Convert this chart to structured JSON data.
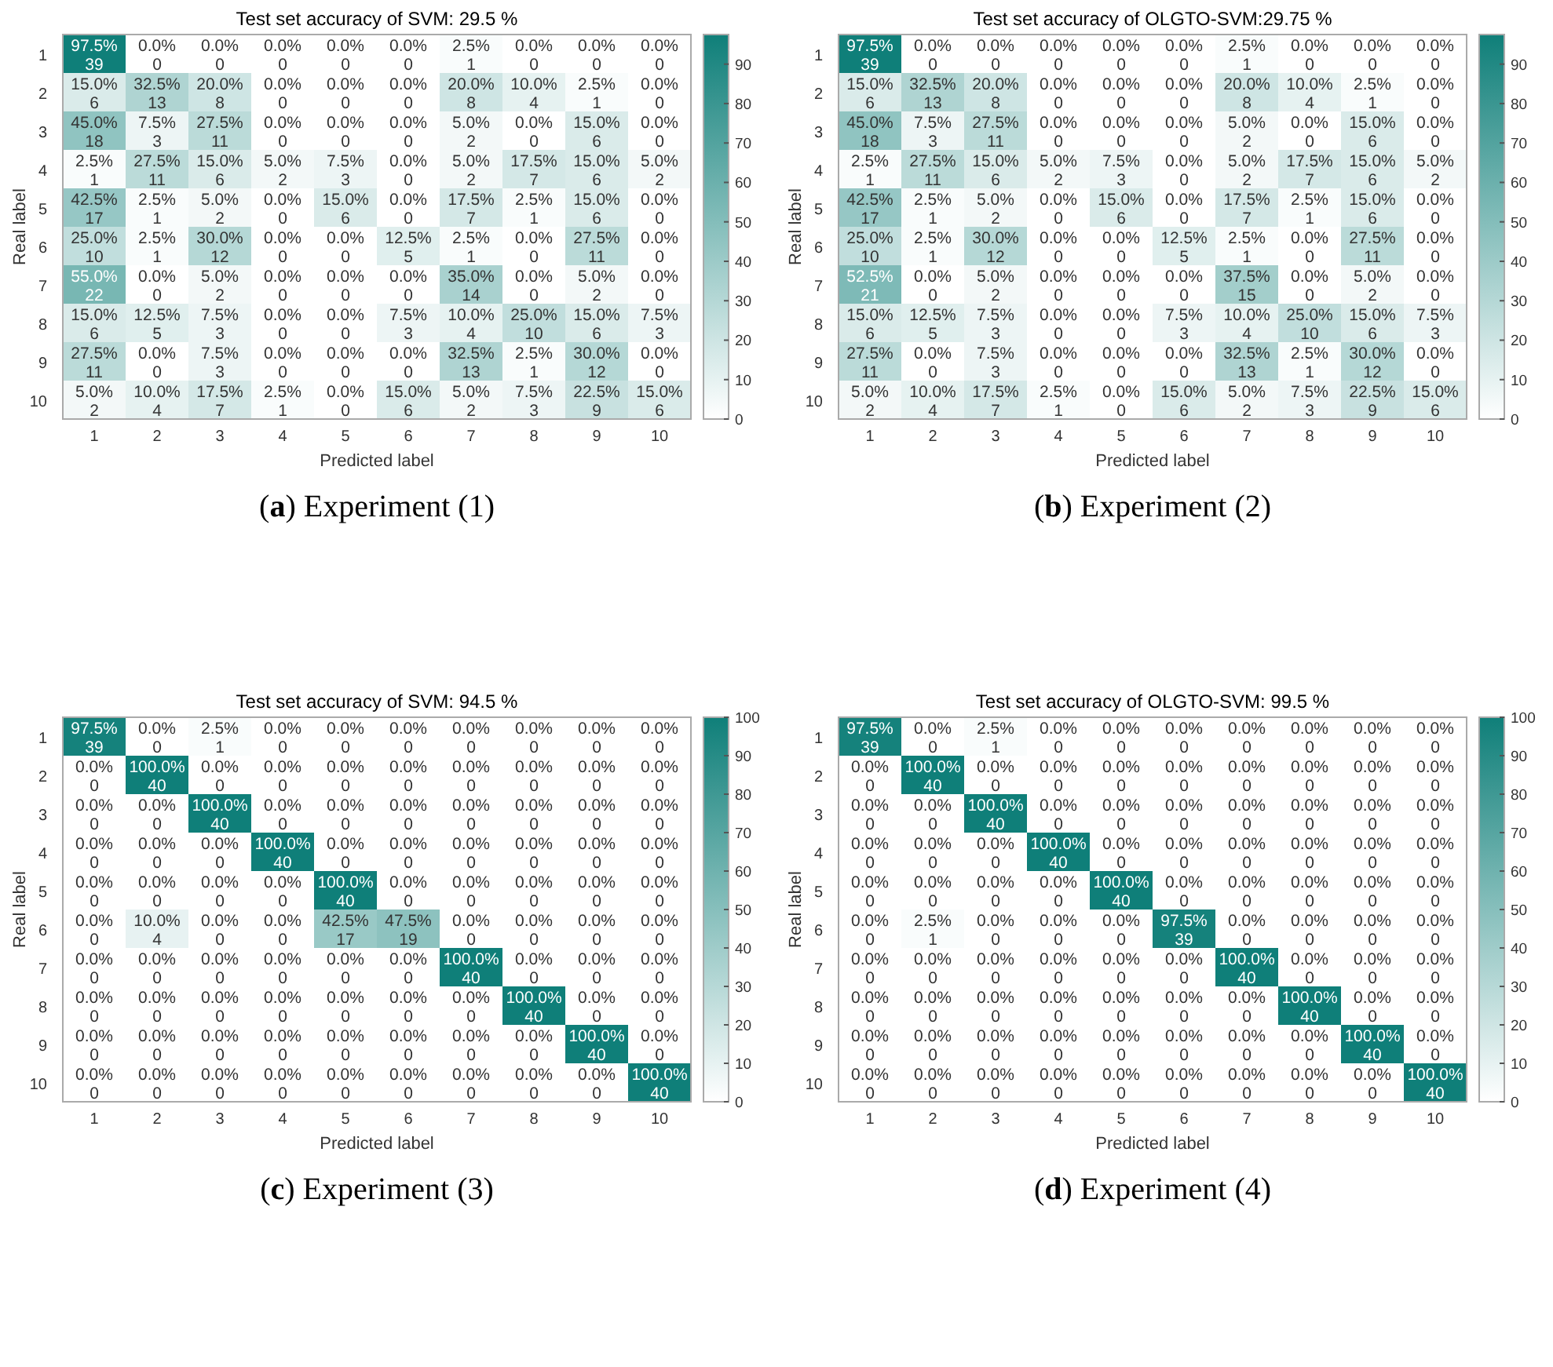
{
  "chart_data": [
    {
      "type": "heatmap",
      "title": "Test set accuracy of SVM: 29.5 %",
      "xlabel": "Predicted label",
      "ylabel": "Real label",
      "annotations": [
        "(a) Experiment (1)"
      ],
      "categories": [
        "1",
        "2",
        "3",
        "4",
        "5",
        "6",
        "7",
        "8",
        "9",
        "10"
      ],
      "y_categories": [
        "1",
        "2",
        "3",
        "4",
        "5",
        "6",
        "7",
        "8",
        "9",
        "10"
      ],
      "clim": [
        0,
        97.5
      ],
      "cticks": [
        0,
        10,
        20,
        30,
        40,
        50,
        60,
        70,
        80,
        90
      ],
      "cells": [
        [
          97.5,
          0,
          0,
          0,
          0,
          0,
          2.5,
          0,
          0,
          0
        ],
        [
          15,
          32.5,
          20,
          0,
          0,
          0,
          20,
          10,
          2.5,
          0
        ],
        [
          45,
          7.5,
          27.5,
          0,
          0,
          0,
          5,
          0,
          15,
          0
        ],
        [
          2.5,
          27.5,
          15,
          5,
          7.5,
          0,
          5,
          17.5,
          15,
          5
        ],
        [
          42.5,
          2.5,
          5,
          0,
          15,
          0,
          17.5,
          2.5,
          15,
          0
        ],
        [
          25,
          2.5,
          30,
          0,
          0,
          12.5,
          2.5,
          0,
          27.5,
          0
        ],
        [
          55,
          0,
          5,
          0,
          0,
          0,
          35,
          0,
          5,
          0
        ],
        [
          15,
          12.5,
          7.5,
          0,
          0,
          7.5,
          10,
          25,
          15,
          7.5
        ],
        [
          27.5,
          0,
          7.5,
          0,
          0,
          0,
          32.5,
          2.5,
          30,
          0
        ],
        [
          5,
          10,
          17.5,
          2.5,
          0,
          15,
          5,
          7.5,
          22.5,
          15
        ]
      ],
      "cell_labels": [
        [
          "97.5%\n39",
          "0.0%\n0",
          "0.0%\n0",
          "0.0%\n0",
          "0.0%\n0",
          "0.0%\n0",
          "2.5%\n1",
          "0.0%\n0",
          "0.0%\n0",
          "0.0%\n0"
        ],
        [
          "15.0%\n6",
          "32.5%\n13",
          "20.0%\n8",
          "0.0%\n0",
          "0.0%\n0",
          "0.0%\n0",
          "20.0%\n8",
          "10.0%\n4",
          "2.5%\n1",
          "0.0%\n0"
        ],
        [
          "45.0%\n18",
          "7.5%\n3",
          "27.5%\n11",
          "0.0%\n0",
          "0.0%\n0",
          "0.0%\n0",
          "5.0%\n2",
          "0.0%\n0",
          "15.0%\n6",
          "0.0%\n0"
        ],
        [
          "2.5%\n1",
          "27.5%\n11",
          "15.0%\n6",
          "5.0%\n2",
          "7.5%\n3",
          "0.0%\n0",
          "5.0%\n2",
          "17.5%\n7",
          "15.0%\n6",
          "5.0%\n2"
        ],
        [
          "42.5%\n17",
          "2.5%\n1",
          "5.0%\n2",
          "0.0%\n0",
          "15.0%\n6",
          "0.0%\n0",
          "17.5%\n7",
          "2.5%\n1",
          "15.0%\n6",
          "0.0%\n0"
        ],
        [
          "25.0%\n10",
          "2.5%\n1",
          "30.0%\n12",
          "0.0%\n0",
          "0.0%\n0",
          "12.5%\n5",
          "2.5%\n1",
          "0.0%\n0",
          "27.5%\n11",
          "0.0%\n0"
        ],
        [
          "55.0%\n22",
          "0.0%\n0",
          "5.0%\n2",
          "0.0%\n0",
          "0.0%\n0",
          "0.0%\n0",
          "35.0%\n14",
          "0.0%\n0",
          "5.0%\n2",
          "0.0%\n0"
        ],
        [
          "15.0%\n6",
          "12.5%\n5",
          "7.5%\n3",
          "0.0%\n0",
          "0.0%\n0",
          "7.5%\n3",
          "10.0%\n4",
          "25.0%\n10",
          "15.0%\n6",
          "7.5%\n3"
        ],
        [
          "27.5%\n11",
          "0.0%\n0",
          "7.5%\n3",
          "0.0%\n0",
          "0.0%\n0",
          "0.0%\n0",
          "32.5%\n13",
          "2.5%\n1",
          "30.0%\n12",
          "0.0%\n0"
        ],
        [
          "5.0%\n2",
          "10.0%\n4",
          "17.5%\n7",
          "2.5%\n1",
          "0.0%\n0",
          "15.0%\n6",
          "5.0%\n2",
          "7.5%\n3",
          "22.5%\n9",
          "15.0%\n6"
        ]
      ]
    },
    {
      "type": "heatmap",
      "title": "Test set accuracy of OLGTO-SVM:29.75 %",
      "xlabel": "Predicted label",
      "ylabel": "Real label",
      "annotations": [
        "(b) Experiment (2)"
      ],
      "categories": [
        "1",
        "2",
        "3",
        "4",
        "5",
        "6",
        "7",
        "8",
        "9",
        "10"
      ],
      "y_categories": [
        "1",
        "2",
        "3",
        "4",
        "5",
        "6",
        "7",
        "8",
        "9",
        "10"
      ],
      "clim": [
        0,
        97.5
      ],
      "cticks": [
        0,
        10,
        20,
        30,
        40,
        50,
        60,
        70,
        80,
        90
      ],
      "cells": [
        [
          97.5,
          0,
          0,
          0,
          0,
          0,
          2.5,
          0,
          0,
          0
        ],
        [
          15,
          32.5,
          20,
          0,
          0,
          0,
          20,
          10,
          2.5,
          0
        ],
        [
          45,
          7.5,
          27.5,
          0,
          0,
          0,
          5,
          0,
          15,
          0
        ],
        [
          2.5,
          27.5,
          15,
          5,
          7.5,
          0,
          5,
          17.5,
          15,
          5
        ],
        [
          42.5,
          2.5,
          5,
          0,
          15,
          0,
          17.5,
          2.5,
          15,
          0
        ],
        [
          25,
          2.5,
          30,
          0,
          0,
          12.5,
          2.5,
          0,
          27.5,
          0
        ],
        [
          52.5,
          0,
          5,
          0,
          0,
          0,
          37.5,
          0,
          5,
          0
        ],
        [
          15,
          12.5,
          7.5,
          0,
          0,
          7.5,
          10,
          25,
          15,
          7.5
        ],
        [
          27.5,
          0,
          7.5,
          0,
          0,
          0,
          32.5,
          2.5,
          30,
          0
        ],
        [
          5,
          10,
          17.5,
          2.5,
          0,
          15,
          5,
          7.5,
          22.5,
          15
        ]
      ],
      "cell_labels": [
        [
          "97.5%\n39",
          "0.0%\n0",
          "0.0%\n0",
          "0.0%\n0",
          "0.0%\n0",
          "0.0%\n0",
          "2.5%\n1",
          "0.0%\n0",
          "0.0%\n0",
          "0.0%\n0"
        ],
        [
          "15.0%\n6",
          "32.5%\n13",
          "20.0%\n8",
          "0.0%\n0",
          "0.0%\n0",
          "0.0%\n0",
          "20.0%\n8",
          "10.0%\n4",
          "2.5%\n1",
          "0.0%\n0"
        ],
        [
          "45.0%\n18",
          "7.5%\n3",
          "27.5%\n11",
          "0.0%\n0",
          "0.0%\n0",
          "0.0%\n0",
          "5.0%\n2",
          "0.0%\n0",
          "15.0%\n6",
          "0.0%\n0"
        ],
        [
          "2.5%\n1",
          "27.5%\n11",
          "15.0%\n6",
          "5.0%\n2",
          "7.5%\n3",
          "0.0%\n0",
          "5.0%\n2",
          "17.5%\n7",
          "15.0%\n6",
          "5.0%\n2"
        ],
        [
          "42.5%\n17",
          "2.5%\n1",
          "5.0%\n2",
          "0.0%\n0",
          "15.0%\n6",
          "0.0%\n0",
          "17.5%\n7",
          "2.5%\n1",
          "15.0%\n6",
          "0.0%\n0"
        ],
        [
          "25.0%\n10",
          "2.5%\n1",
          "30.0%\n12",
          "0.0%\n0",
          "0.0%\n0",
          "12.5%\n5",
          "2.5%\n1",
          "0.0%\n0",
          "27.5%\n11",
          "0.0%\n0"
        ],
        [
          "52.5%\n21",
          "0.0%\n0",
          "5.0%\n2",
          "0.0%\n0",
          "0.0%\n0",
          "0.0%\n0",
          "37.5%\n15",
          "0.0%\n0",
          "5.0%\n2",
          "0.0%\n0"
        ],
        [
          "15.0%\n6",
          "12.5%\n5",
          "7.5%\n3",
          "0.0%\n0",
          "0.0%\n0",
          "7.5%\n3",
          "10.0%\n4",
          "25.0%\n10",
          "15.0%\n6",
          "7.5%\n3"
        ],
        [
          "27.5%\n11",
          "0.0%\n0",
          "7.5%\n3",
          "0.0%\n0",
          "0.0%\n0",
          "0.0%\n0",
          "32.5%\n13",
          "2.5%\n1",
          "30.0%\n12",
          "0.0%\n0"
        ],
        [
          "5.0%\n2",
          "10.0%\n4",
          "17.5%\n7",
          "2.5%\n1",
          "0.0%\n0",
          "15.0%\n6",
          "5.0%\n2",
          "7.5%\n3",
          "22.5%\n9",
          "15.0%\n6"
        ]
      ]
    },
    {
      "type": "heatmap",
      "title": "Test set accuracy of SVM: 94.5 %",
      "xlabel": "Predicted label",
      "ylabel": "Real label",
      "annotations": [
        "(c) Experiment (3)"
      ],
      "categories": [
        "1",
        "2",
        "3",
        "4",
        "5",
        "6",
        "7",
        "8",
        "9",
        "10"
      ],
      "y_categories": [
        "1",
        "2",
        "3",
        "4",
        "5",
        "6",
        "7",
        "8",
        "9",
        "10"
      ],
      "clim": [
        0,
        100
      ],
      "cticks": [
        0,
        10,
        20,
        30,
        40,
        50,
        60,
        70,
        80,
        90,
        100
      ],
      "cells": [
        [
          97.5,
          0,
          2.5,
          0,
          0,
          0,
          0,
          0,
          0,
          0
        ],
        [
          0,
          100,
          0,
          0,
          0,
          0,
          0,
          0,
          0,
          0
        ],
        [
          0,
          0,
          100,
          0,
          0,
          0,
          0,
          0,
          0,
          0
        ],
        [
          0,
          0,
          0,
          100,
          0,
          0,
          0,
          0,
          0,
          0
        ],
        [
          0,
          0,
          0,
          0,
          100,
          0,
          0,
          0,
          0,
          0
        ],
        [
          0,
          10,
          0,
          0,
          42.5,
          47.5,
          0,
          0,
          0,
          0
        ],
        [
          0,
          0,
          0,
          0,
          0,
          0,
          100,
          0,
          0,
          0
        ],
        [
          0,
          0,
          0,
          0,
          0,
          0,
          0,
          100,
          0,
          0
        ],
        [
          0,
          0,
          0,
          0,
          0,
          0,
          0,
          0,
          100,
          0
        ],
        [
          0,
          0,
          0,
          0,
          0,
          0,
          0,
          0,
          0,
          100
        ]
      ],
      "cell_labels": [
        [
          "97.5%\n39",
          "0.0%\n0",
          "2.5%\n1",
          "0.0%\n0",
          "0.0%\n0",
          "0.0%\n0",
          "0.0%\n0",
          "0.0%\n0",
          "0.0%\n0",
          "0.0%\n0"
        ],
        [
          "0.0%\n0",
          "100.0%\n40",
          "0.0%\n0",
          "0.0%\n0",
          "0.0%\n0",
          "0.0%\n0",
          "0.0%\n0",
          "0.0%\n0",
          "0.0%\n0",
          "0.0%\n0"
        ],
        [
          "0.0%\n0",
          "0.0%\n0",
          "100.0%\n40",
          "0.0%\n0",
          "0.0%\n0",
          "0.0%\n0",
          "0.0%\n0",
          "0.0%\n0",
          "0.0%\n0",
          "0.0%\n0"
        ],
        [
          "0.0%\n0",
          "0.0%\n0",
          "0.0%\n0",
          "100.0%\n40",
          "0.0%\n0",
          "0.0%\n0",
          "0.0%\n0",
          "0.0%\n0",
          "0.0%\n0",
          "0.0%\n0"
        ],
        [
          "0.0%\n0",
          "0.0%\n0",
          "0.0%\n0",
          "0.0%\n0",
          "100.0%\n40",
          "0.0%\n0",
          "0.0%\n0",
          "0.0%\n0",
          "0.0%\n0",
          "0.0%\n0"
        ],
        [
          "0.0%\n0",
          "10.0%\n4",
          "0.0%\n0",
          "0.0%\n0",
          "42.5%\n17",
          "47.5%\n19",
          "0.0%\n0",
          "0.0%\n0",
          "0.0%\n0",
          "0.0%\n0"
        ],
        [
          "0.0%\n0",
          "0.0%\n0",
          "0.0%\n0",
          "0.0%\n0",
          "0.0%\n0",
          "0.0%\n0",
          "100.0%\n40",
          "0.0%\n0",
          "0.0%\n0",
          "0.0%\n0"
        ],
        [
          "0.0%\n0",
          "0.0%\n0",
          "0.0%\n0",
          "0.0%\n0",
          "0.0%\n0",
          "0.0%\n0",
          "0.0%\n0",
          "100.0%\n40",
          "0.0%\n0",
          "0.0%\n0"
        ],
        [
          "0.0%\n0",
          "0.0%\n0",
          "0.0%\n0",
          "0.0%\n0",
          "0.0%\n0",
          "0.0%\n0",
          "0.0%\n0",
          "0.0%\n0",
          "100.0%\n40",
          "0.0%\n0"
        ],
        [
          "0.0%\n0",
          "0.0%\n0",
          "0.0%\n0",
          "0.0%\n0",
          "0.0%\n0",
          "0.0%\n0",
          "0.0%\n0",
          "0.0%\n0",
          "0.0%\n0",
          "100.0%\n40"
        ]
      ]
    },
    {
      "type": "heatmap",
      "title": "Test set accuracy of OLGTO-SVM: 99.5 %",
      "xlabel": "Predicted label",
      "ylabel": "Real label",
      "annotations": [
        "(d) Experiment (4)"
      ],
      "categories": [
        "1",
        "2",
        "3",
        "4",
        "5",
        "6",
        "7",
        "8",
        "9",
        "10"
      ],
      "y_categories": [
        "1",
        "2",
        "3",
        "4",
        "5",
        "6",
        "7",
        "8",
        "9",
        "10"
      ],
      "clim": [
        0,
        100
      ],
      "cticks": [
        0,
        10,
        20,
        30,
        40,
        50,
        60,
        70,
        80,
        90,
        100
      ],
      "cells": [
        [
          97.5,
          0,
          2.5,
          0,
          0,
          0,
          0,
          0,
          0,
          0
        ],
        [
          0,
          100,
          0,
          0,
          0,
          0,
          0,
          0,
          0,
          0
        ],
        [
          0,
          0,
          100,
          0,
          0,
          0,
          0,
          0,
          0,
          0
        ],
        [
          0,
          0,
          0,
          100,
          0,
          0,
          0,
          0,
          0,
          0
        ],
        [
          0,
          0,
          0,
          0,
          100,
          0,
          0,
          0,
          0,
          0
        ],
        [
          0,
          2.5,
          0,
          0,
          0,
          97.5,
          0,
          0,
          0,
          0
        ],
        [
          0,
          0,
          0,
          0,
          0,
          0,
          100,
          0,
          0,
          0
        ],
        [
          0,
          0,
          0,
          0,
          0,
          0,
          0,
          100,
          0,
          0
        ],
        [
          0,
          0,
          0,
          0,
          0,
          0,
          0,
          0,
          100,
          0
        ],
        [
          0,
          0,
          0,
          0,
          0,
          0,
          0,
          0,
          0,
          100
        ]
      ],
      "cell_labels": [
        [
          "97.5%\n39",
          "0.0%\n0",
          "2.5%\n1",
          "0.0%\n0",
          "0.0%\n0",
          "0.0%\n0",
          "0.0%\n0",
          "0.0%\n0",
          "0.0%\n0",
          "0.0%\n0"
        ],
        [
          "0.0%\n0",
          "100.0%\n40",
          "0.0%\n0",
          "0.0%\n0",
          "0.0%\n0",
          "0.0%\n0",
          "0.0%\n0",
          "0.0%\n0",
          "0.0%\n0",
          "0.0%\n0"
        ],
        [
          "0.0%\n0",
          "0.0%\n0",
          "100.0%\n40",
          "0.0%\n0",
          "0.0%\n0",
          "0.0%\n0",
          "0.0%\n0",
          "0.0%\n0",
          "0.0%\n0",
          "0.0%\n0"
        ],
        [
          "0.0%\n0",
          "0.0%\n0",
          "0.0%\n0",
          "100.0%\n40",
          "0.0%\n0",
          "0.0%\n0",
          "0.0%\n0",
          "0.0%\n0",
          "0.0%\n0",
          "0.0%\n0"
        ],
        [
          "0.0%\n0",
          "0.0%\n0",
          "0.0%\n0",
          "0.0%\n0",
          "100.0%\n40",
          "0.0%\n0",
          "0.0%\n0",
          "0.0%\n0",
          "0.0%\n0",
          "0.0%\n0"
        ],
        [
          "0.0%\n0",
          "2.5%\n1",
          "0.0%\n0",
          "0.0%\n0",
          "0.0%\n0",
          "97.5%\n39",
          "0.0%\n0",
          "0.0%\n0",
          "0.0%\n0",
          "0.0%\n0"
        ],
        [
          "0.0%\n0",
          "0.0%\n0",
          "0.0%\n0",
          "0.0%\n0",
          "0.0%\n0",
          "0.0%\n0",
          "100.0%\n40",
          "0.0%\n0",
          "0.0%\n0",
          "0.0%\n0"
        ],
        [
          "0.0%\n0",
          "0.0%\n0",
          "0.0%\n0",
          "0.0%\n0",
          "0.0%\n0",
          "0.0%\n0",
          "0.0%\n0",
          "100.0%\n40",
          "0.0%\n0",
          "0.0%\n0"
        ],
        [
          "0.0%\n0",
          "0.0%\n0",
          "0.0%\n0",
          "0.0%\n0",
          "0.0%\n0",
          "0.0%\n0",
          "0.0%\n0",
          "0.0%\n0",
          "100.0%\n40",
          "0.0%\n0"
        ],
        [
          "0.0%\n0",
          "0.0%\n0",
          "0.0%\n0",
          "0.0%\n0",
          "0.0%\n0",
          "0.0%\n0",
          "0.0%\n0",
          "0.0%\n0",
          "0.0%\n0",
          "100.0%\n40"
        ]
      ]
    }
  ]
}
